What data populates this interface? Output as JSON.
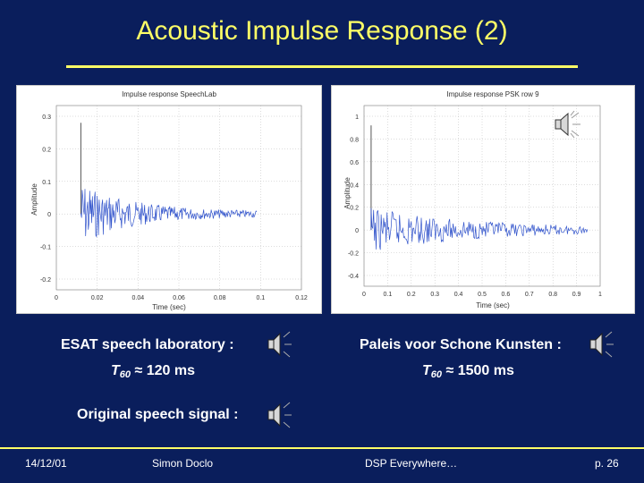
{
  "title": "Acoustic Impulse Response (2)",
  "plots": [
    {
      "plot_title": "Impulse response SpeechLab",
      "xlabel": "Time (sec)",
      "ylabel": "Amplitude",
      "xticks": [
        "0",
        "0.02",
        "0.04",
        "0.06",
        "0.08",
        "0.1",
        "0.12"
      ],
      "yticks": [
        "0.3",
        "0.2",
        "0.1",
        "0",
        "-0.1",
        "-0.2"
      ]
    },
    {
      "plot_title": "Impulse response PSK row 9",
      "xlabel": "Time (sec)",
      "ylabel": "Amplitude",
      "xticks": [
        "0",
        "0.1",
        "0.2",
        "0.3",
        "0.4",
        "0.5",
        "0.6",
        "0.7",
        "0.8",
        "0.9",
        "1"
      ],
      "yticks": [
        "1",
        "0.8",
        "0.6",
        "0.4",
        "0.2",
        "0",
        "-0.2",
        "-0.4"
      ]
    }
  ],
  "labels": {
    "esat": "ESAT speech laboratory :",
    "paleis": "Paleis voor Schone Kunsten :",
    "t60_symbol": "T",
    "t60_sub": "60",
    "t60_esat_value": "≈ 120 ms",
    "t60_paleis_value": "≈ 1500 ms",
    "original": "Original speech signal :"
  },
  "footer": {
    "date": "14/12/01",
    "author": "Simon Doclo",
    "course": "DSP Everywhere…",
    "page": "p. 26"
  },
  "icons": [
    "speaker-icon"
  ],
  "colors": {
    "background": "#0a1e5c",
    "title": "#ffff66",
    "signal": "#3355cc"
  }
}
